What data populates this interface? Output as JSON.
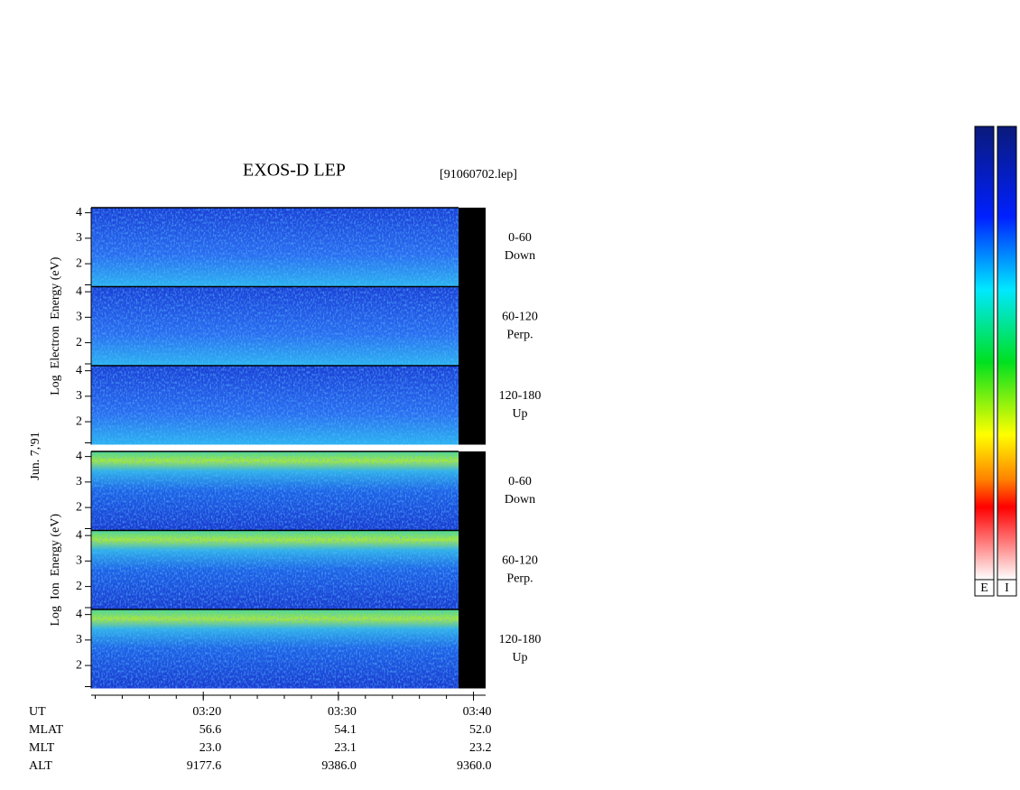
{
  "chart_data": {
    "type": "spectrogram",
    "title": "EXOS-D LEP",
    "subtitle": "[91060702.lep]",
    "date_label": "Jun. 7,'91",
    "groups": [
      {
        "ylabel": "Log  Electron  Energy (eV)",
        "species": "electron",
        "panels": [
          {
            "label": "0-60",
            "sublabel": "Down"
          },
          {
            "label": "60-120",
            "sublabel": "Perp."
          },
          {
            "label": "120-180",
            "sublabel": "Up"
          }
        ]
      },
      {
        "ylabel": "Log  Ion  Energy (eV)",
        "species": "ion",
        "panels": [
          {
            "label": "0-60",
            "sublabel": "Down"
          },
          {
            "label": "60-120",
            "sublabel": "Perp."
          },
          {
            "label": "120-180",
            "sublabel": "Up"
          }
        ]
      }
    ],
    "ylim": [
      1.1,
      4.2
    ],
    "yticks": [
      2,
      3,
      4
    ],
    "xlim": [
      11.7,
      40.9
    ],
    "xticks": [
      {
        "value": 20,
        "label": "03:20"
      },
      {
        "value": 30,
        "label": "03:30"
      },
      {
        "value": 40,
        "label": "03:40"
      }
    ],
    "xlabel": "UT",
    "ephemeris": [
      {
        "name": "MLAT",
        "values": [
          "56.6",
          "54.1",
          "52.0"
        ]
      },
      {
        "name": "MLT",
        "values": [
          "23.0",
          "23.1",
          "23.2"
        ]
      },
      {
        "name": "ALT",
        "values": [
          "9177.6",
          "9386.0",
          "9360.0"
        ]
      }
    ],
    "colorbars": [
      "E",
      "I"
    ]
  }
}
